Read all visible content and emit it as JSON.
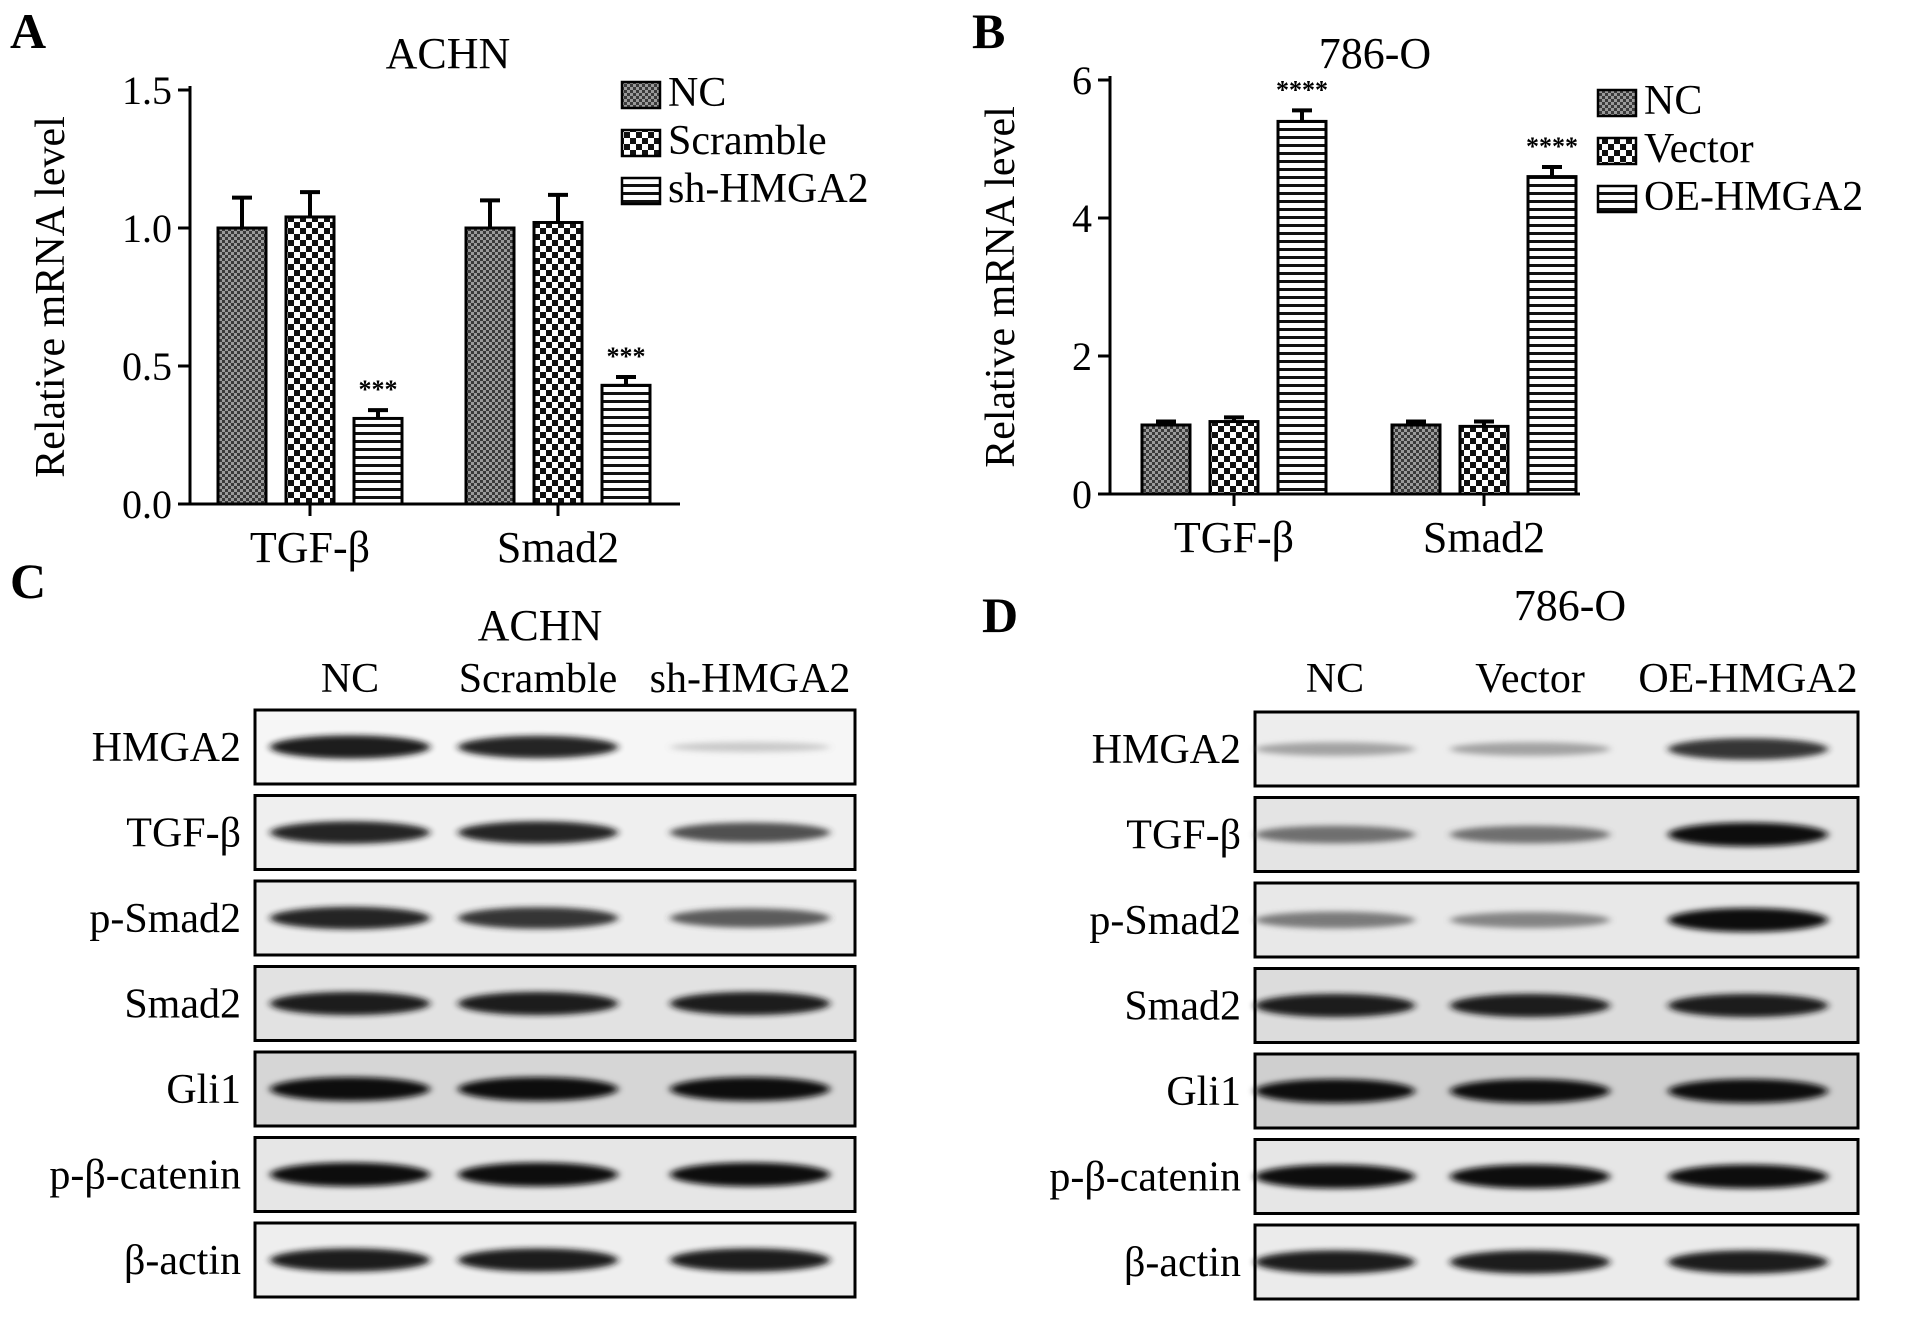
{
  "panels": {
    "A": "A",
    "B": "B",
    "C": "C",
    "D": "D"
  },
  "chart_data": [
    {
      "type": "bar",
      "panel": "A",
      "title": "ACHN",
      "ylabel": "Relative mRNA level",
      "xlabel": "",
      "categories": [
        "TGF-β",
        "Smad2"
      ],
      "ylim": [
        0,
        1.5
      ],
      "yticks": [
        "0.0",
        "0.5",
        "1.0",
        "1.5"
      ],
      "ytick_values": [
        0,
        0.5,
        1.0,
        1.5
      ],
      "legend_position": "top-right",
      "series": [
        {
          "name": "NC",
          "values": [
            1.0,
            1.0
          ],
          "errors": [
            0.11,
            0.1
          ],
          "pattern": "dense-check"
        },
        {
          "name": "Scramble",
          "values": [
            1.04,
            1.02
          ],
          "errors": [
            0.09,
            0.1
          ],
          "pattern": "checker"
        },
        {
          "name": "sh-HMGA2",
          "values": [
            0.31,
            0.43
          ],
          "errors": [
            0.03,
            0.03
          ],
          "pattern": "horizontal"
        }
      ],
      "annotations": [
        {
          "series": 2,
          "category": 0,
          "text": "***"
        },
        {
          "series": 2,
          "category": 1,
          "text": "***"
        }
      ]
    },
    {
      "type": "bar",
      "panel": "B",
      "title": "786-O",
      "ylabel": "Relative mRNA level",
      "xlabel": "",
      "categories": [
        "TGF-β",
        "Smad2"
      ],
      "ylim": [
        0,
        6
      ],
      "yticks": [
        "0",
        "2",
        "4",
        "6"
      ],
      "ytick_values": [
        0,
        2,
        4,
        6
      ],
      "legend_position": "top-right",
      "series": [
        {
          "name": "NC",
          "values": [
            1.0,
            1.0
          ],
          "errors": [
            0.05,
            0.05
          ],
          "pattern": "dense-check"
        },
        {
          "name": "Vector",
          "values": [
            1.05,
            0.98
          ],
          "errors": [
            0.06,
            0.07
          ],
          "pattern": "checker"
        },
        {
          "name": "OE-HMGA2",
          "values": [
            5.4,
            4.6
          ],
          "errors": [
            0.16,
            0.14
          ],
          "pattern": "horizontal"
        }
      ],
      "annotations": [
        {
          "series": 2,
          "category": 0,
          "text": "****"
        },
        {
          "series": 2,
          "category": 1,
          "text": "****"
        }
      ]
    }
  ],
  "blots": [
    {
      "panel": "C",
      "cell_line": "ACHN",
      "lanes": [
        "NC",
        "Scramble",
        "sh-HMGA2"
      ],
      "rows": [
        {
          "label": "HMGA2",
          "intensities": [
            0.95,
            0.9,
            0.12
          ]
        },
        {
          "label": "TGF-β",
          "intensities": [
            0.9,
            0.9,
            0.75
          ]
        },
        {
          "label": "p-Smad2",
          "intensities": [
            0.9,
            0.85,
            0.7
          ]
        },
        {
          "label": "Smad2",
          "intensities": [
            0.95,
            0.95,
            0.95
          ]
        },
        {
          "label": "Gli1",
          "intensities": [
            1.0,
            1.0,
            1.0
          ]
        },
        {
          "label": "p-β-catenin",
          "intensities": [
            1.0,
            1.0,
            1.0
          ]
        },
        {
          "label": "β-actin",
          "intensities": [
            0.95,
            0.95,
            0.95
          ]
        }
      ]
    },
    {
      "panel": "D",
      "cell_line": "786-O",
      "lanes": [
        "NC",
        "Vector",
        "OE-HMGA2"
      ],
      "rows": [
        {
          "label": "HMGA2",
          "intensities": [
            0.35,
            0.35,
            0.85
          ]
        },
        {
          "label": "TGF-β",
          "intensities": [
            0.6,
            0.6,
            1.0
          ]
        },
        {
          "label": "p-Smad2",
          "intensities": [
            0.55,
            0.5,
            1.0
          ]
        },
        {
          "label": "Smad2",
          "intensities": [
            0.95,
            0.95,
            0.95
          ]
        },
        {
          "label": "Gli1",
          "intensities": [
            1.0,
            1.0,
            1.0
          ]
        },
        {
          "label": "p-β-catenin",
          "intensities": [
            1.0,
            1.0,
            1.0
          ]
        },
        {
          "label": "β-actin",
          "intensities": [
            0.95,
            0.95,
            0.95
          ]
        }
      ]
    }
  ]
}
